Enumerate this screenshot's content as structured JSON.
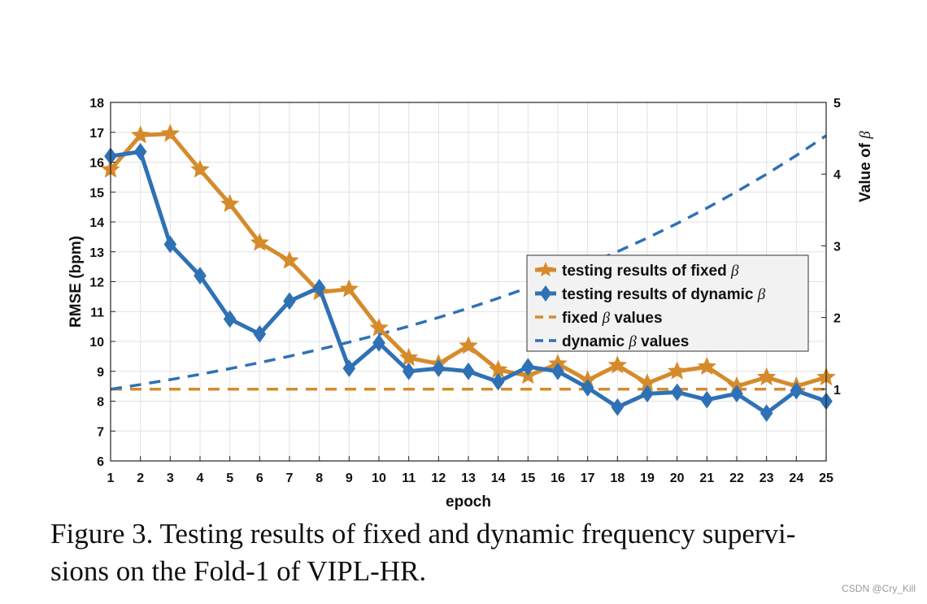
{
  "chart_data": {
    "type": "line",
    "x": [
      1,
      2,
      3,
      4,
      5,
      6,
      7,
      8,
      9,
      10,
      11,
      12,
      13,
      14,
      15,
      16,
      17,
      18,
      19,
      20,
      21,
      22,
      23,
      24,
      25
    ],
    "xlabel": "epoch",
    "ylabel": "RMSE (bpm)",
    "y2label": "Value of β",
    "ylim": [
      6,
      18
    ],
    "yticks": [
      "6",
      "7",
      "8",
      "9",
      "10",
      "11",
      "12",
      "13",
      "14",
      "15",
      "16",
      "17",
      "18"
    ],
    "y2lim": [
      0,
      5
    ],
    "y2ticks": [
      "1",
      "2",
      "3",
      "4",
      "5"
    ],
    "xlim": [
      1,
      25
    ],
    "grid": true,
    "legend_position": "center-right",
    "series": [
      {
        "name": "testing results of fixed β",
        "axis": "left",
        "color": "#d58b2c",
        "marker": "star",
        "line": "solid",
        "values": [
          15.75,
          16.9,
          16.95,
          15.75,
          14.6,
          13.3,
          12.7,
          11.65,
          11.75,
          10.45,
          9.45,
          9.25,
          9.85,
          9.05,
          8.85,
          9.25,
          8.7,
          9.2,
          8.6,
          9.0,
          9.15,
          8.5,
          8.8,
          8.5,
          8.8
        ]
      },
      {
        "name": "testing results of dynamic β",
        "axis": "left",
        "color": "#2f71b5",
        "marker": "diamond",
        "line": "solid",
        "values": [
          16.2,
          16.35,
          13.25,
          12.2,
          10.75,
          10.25,
          11.35,
          11.8,
          9.1,
          9.95,
          9.0,
          9.1,
          9.0,
          8.65,
          9.15,
          9.0,
          8.45,
          7.8,
          8.25,
          8.3,
          8.05,
          8.25,
          7.6,
          8.35,
          8.0
        ]
      },
      {
        "name": "fixed β values",
        "axis": "right",
        "color": "#d58b2c",
        "line": "dashed",
        "values": [
          1,
          1,
          1,
          1,
          1,
          1,
          1,
          1,
          1,
          1,
          1,
          1,
          1,
          1,
          1,
          1,
          1,
          1,
          1,
          1,
          1,
          1,
          1,
          1,
          1
        ]
      },
      {
        "name": "dynamic β values",
        "axis": "right",
        "color": "#2f71b5",
        "line": "dashed",
        "values": [
          1.0,
          1.065,
          1.134,
          1.208,
          1.287,
          1.371,
          1.46,
          1.555,
          1.656,
          1.764,
          1.878,
          2.0,
          2.13,
          2.269,
          2.416,
          2.574,
          2.741,
          2.919,
          3.109,
          3.311,
          3.527,
          3.756,
          4.0,
          4.26,
          4.537
        ]
      }
    ],
    "legend_labels": [
      {
        "text": "testing results of fixed ",
        "symbol": "β"
      },
      {
        "text": "testing results of dynamic ",
        "symbol": "β"
      },
      {
        "text": "fixed ",
        "symbol": "β",
        "suffix": " values"
      },
      {
        "text": "dynamic ",
        "symbol": "β",
        "suffix": " values"
      }
    ]
  },
  "caption": {
    "line1": "Figure 3.  Testing results of fixed and dynamic frequency supervi-",
    "line2": "sions on the Fold-1 of VIPL-HR."
  },
  "watermark": "CSDN @Cry_Kill"
}
